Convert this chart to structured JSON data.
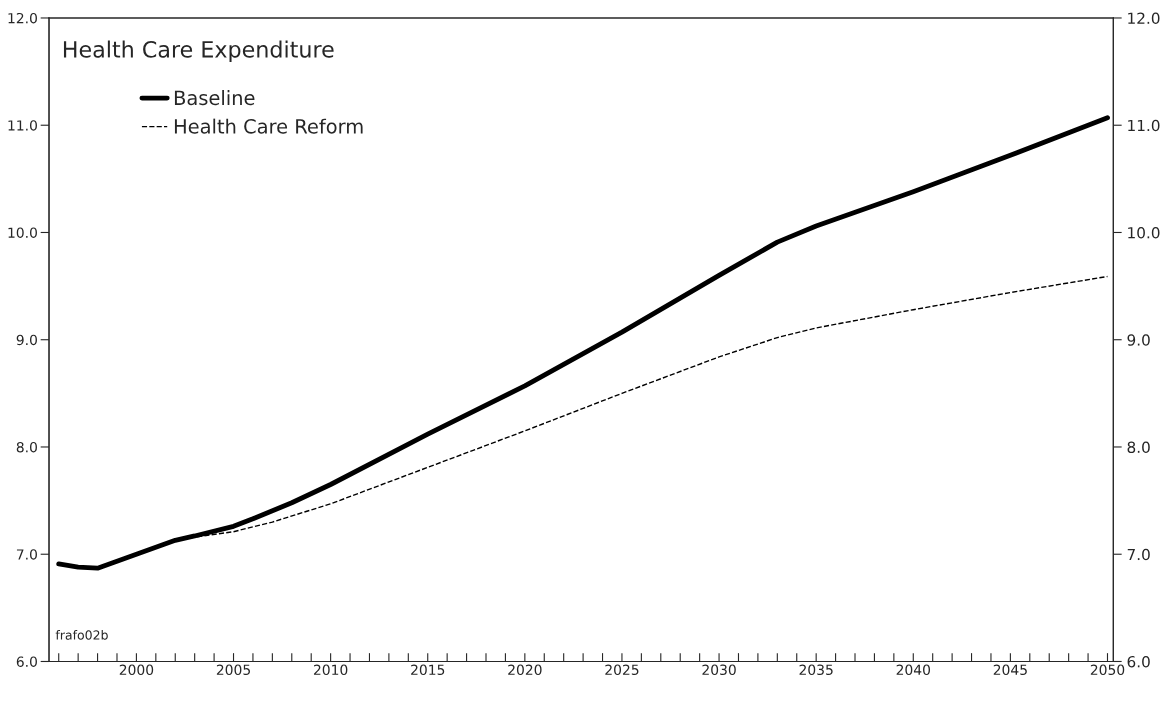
{
  "chart_data": {
    "type": "line",
    "title": "Health Care Expenditure",
    "annotations": [
      "frafo02b"
    ],
    "legend": "top left",
    "grid": false,
    "series": [
      {
        "name": "Baseline",
        "color": "#000000",
        "line_style": "solid",
        "x": [
          1996,
          1997,
          1998,
          2000,
          2002,
          2003,
          2005,
          2006,
          2008,
          2010,
          2015,
          2020,
          2025,
          2030,
          2033,
          2035,
          2040,
          2045,
          2050
        ],
        "values": [
          6.91,
          6.88,
          6.87,
          7.0,
          7.13,
          7.17,
          7.26,
          7.33,
          7.48,
          7.65,
          8.12,
          8.57,
          9.07,
          9.6,
          9.91,
          10.06,
          10.38,
          10.72,
          11.07
        ]
      },
      {
        "name": "Health Care Reform",
        "color": "#000000",
        "line_style": "dashed",
        "x": [
          2002,
          2003,
          2005,
          2007,
          2010,
          2015,
          2020,
          2025,
          2030,
          2033,
          2035,
          2040,
          2045,
          2050
        ],
        "values": [
          7.13,
          7.16,
          7.21,
          7.3,
          7.47,
          7.81,
          8.15,
          8.5,
          8.84,
          9.02,
          9.11,
          9.28,
          9.44,
          9.59
        ]
      }
    ],
    "xlim": [
      1995.5,
      2050.3
    ],
    "xticks": [
      {
        "value": 1996,
        "label": null
      },
      {
        "value": 1997,
        "label": null
      },
      {
        "value": 1998,
        "label": null
      },
      {
        "value": 1999,
        "label": null
      },
      2000,
      {
        "value": 2001,
        "label": null
      },
      {
        "value": 2002,
        "label": null
      },
      {
        "value": 2003,
        "label": null
      },
      {
        "value": 2004,
        "label": null
      },
      2005,
      {
        "value": 2006,
        "label": null
      },
      {
        "value": 2007,
        "label": null
      },
      {
        "value": 2008,
        "label": null
      },
      {
        "value": 2009,
        "label": null
      },
      2010,
      {
        "value": 2011,
        "label": null
      },
      {
        "value": 2012,
        "label": null
      },
      {
        "value": 2013,
        "label": null
      },
      {
        "value": 2014,
        "label": null
      },
      2015,
      {
        "value": 2016,
        "label": null
      },
      {
        "value": 2017,
        "label": null
      },
      {
        "value": 2018,
        "label": null
      },
      {
        "value": 2019,
        "label": null
      },
      2020,
      {
        "value": 2021,
        "label": null
      },
      {
        "value": 2022,
        "label": null
      },
      {
        "value": 2023,
        "label": null
      },
      {
        "value": 2024,
        "label": null
      },
      2025,
      {
        "value": 2026,
        "label": null
      },
      {
        "value": 2027,
        "label": null
      },
      {
        "value": 2028,
        "label": null
      },
      {
        "value": 2029,
        "label": null
      },
      2030,
      {
        "value": 2031,
        "label": null
      },
      {
        "value": 2032,
        "label": null
      },
      {
        "value": 2033,
        "label": null
      },
      {
        "value": 2034,
        "label": null
      },
      2035,
      {
        "value": 2036,
        "label": null
      },
      {
        "value": 2037,
        "label": null
      },
      {
        "value": 2038,
        "label": null
      },
      {
        "value": 2039,
        "label": null
      },
      2040,
      {
        "value": 2041,
        "label": null
      },
      {
        "value": 2042,
        "label": null
      },
      {
        "value": 2043,
        "label": null
      },
      {
        "value": 2044,
        "label": null
      },
      2045,
      {
        "value": 2046,
        "label": null
      },
      {
        "value": 2047,
        "label": null
      },
      {
        "value": 2048,
        "label": null
      },
      {
        "value": 2049,
        "label": null
      },
      2050
    ],
    "ylim": [
      6.0,
      12.0
    ],
    "yticks": [
      {
        "value": 6,
        "label": "6.0"
      },
      {
        "value": 7,
        "label": "7.0"
      },
      {
        "value": 8,
        "label": "8.0"
      },
      {
        "value": 9,
        "label": "9.0"
      },
      {
        "value": 10,
        "label": "10.0"
      },
      {
        "value": 11,
        "label": "11.0"
      },
      {
        "value": 12,
        "label": "12.0"
      }
    ],
    "y2lim": [
      6.0,
      12.0
    ],
    "y2ticks": [
      {
        "value": 6,
        "label": "6.0"
      },
      {
        "value": 7,
        "label": "7.0"
      },
      {
        "value": 8,
        "label": "8.0"
      },
      {
        "value": 9,
        "label": "9.0"
      },
      {
        "value": 10,
        "label": "10.0"
      },
      {
        "value": 11,
        "label": "11.0"
      },
      {
        "value": 12,
        "label": "12.0"
      }
    ]
  }
}
